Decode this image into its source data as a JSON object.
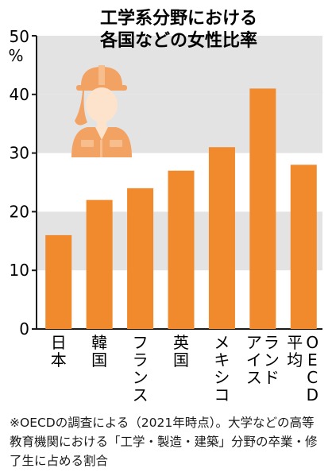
{
  "chart_data": {
    "type": "bar",
    "title": [
      "工学系分野における",
      "各国などの女性比率"
    ],
    "unit_label": [
      "50",
      "%"
    ],
    "categories": [
      "日本",
      "韓国",
      "フランス",
      "英国",
      "メキシコ",
      "アイスランド",
      "OECD平均"
    ],
    "category_label_columns": [
      [
        "日本"
      ],
      [
        "韓国"
      ],
      [
        "フランス"
      ],
      [
        "英国"
      ],
      [
        "メキシコ"
      ],
      [
        "アイス",
        "ランド"
      ],
      [
        "平均",
        "OECD"
      ]
    ],
    "values": [
      16,
      22,
      24,
      27,
      31,
      41,
      28
    ],
    "yticks": [
      0,
      10,
      20,
      30,
      40
    ],
    "ylim": [
      0,
      50
    ],
    "grid_bands": [
      [
        10,
        20
      ],
      [
        30,
        40
      ]
    ],
    "top_band": [
      40,
      50
    ],
    "bar_color": "#f08a2c",
    "band_color": "#e3e3e3",
    "icon": "female-worker-hardhat-icon"
  },
  "note": "※OECDの調査による（2021年時点）。大学などの高等教育機関における「工学・製造・建築」分野の卒業・修了生に占める割合"
}
